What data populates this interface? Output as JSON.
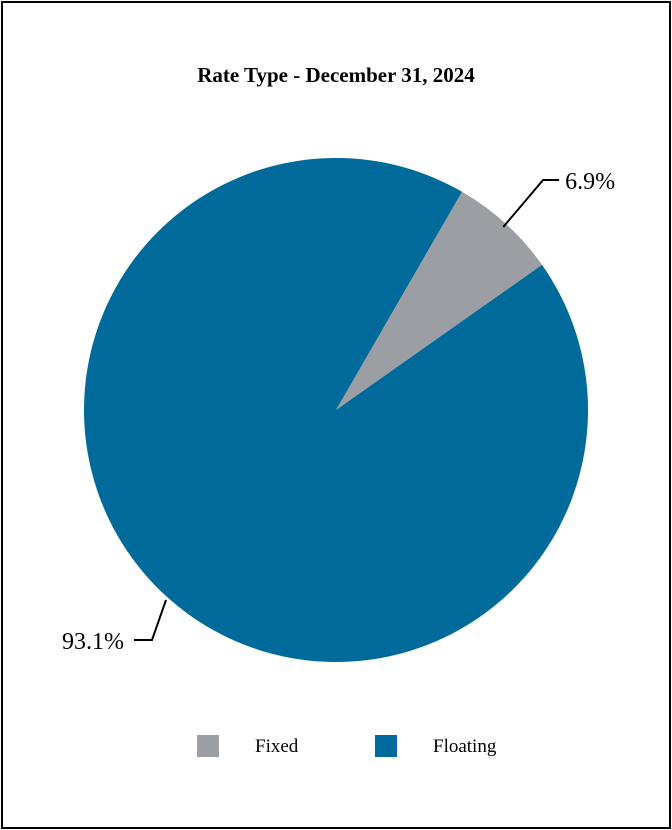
{
  "chart_data": {
    "type": "pie",
    "title": "Rate Type - December 31, 2024",
    "slices": [
      {
        "label": "Fixed",
        "value": 6.9,
        "display": "6.9%",
        "color": "#9b9fa4"
      },
      {
        "label": "Floating",
        "value": 93.1,
        "display": "93.1%",
        "color": "#006a9a"
      }
    ],
    "start_angle_deg": 30,
    "direction": "clockwise",
    "legend": {
      "placement": "bottom",
      "entries": [
        "Fixed",
        "Floating"
      ]
    },
    "data_labels": "outside-with-leader-lines"
  }
}
